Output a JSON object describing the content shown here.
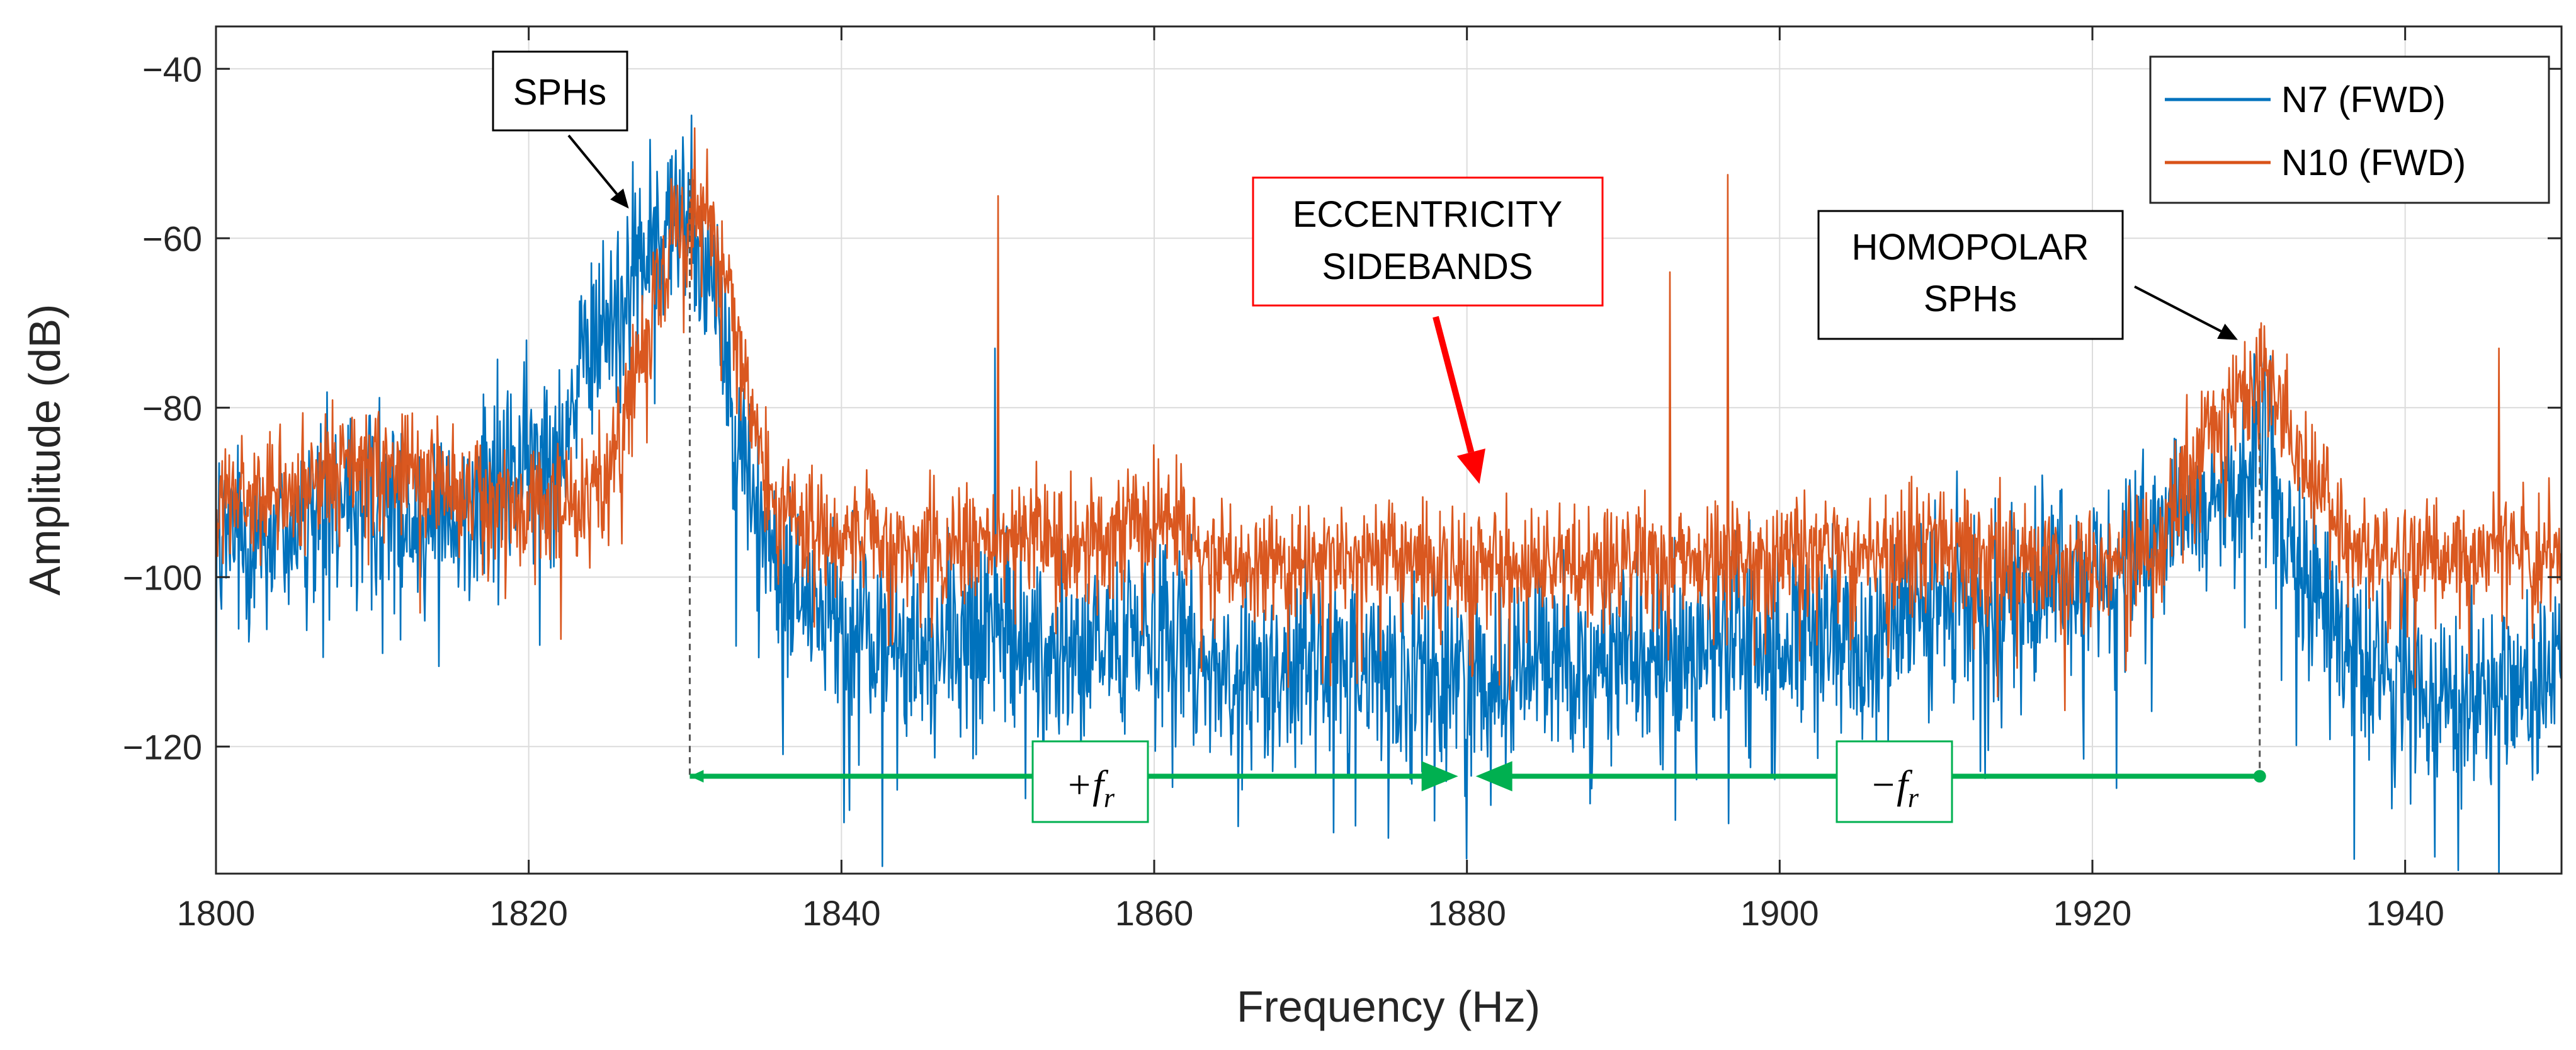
{
  "chart_data": {
    "type": "line",
    "title": "",
    "xlabel": "Frequency (Hz)",
    "ylabel": "Amplitude (dB)",
    "xlim": [
      1800,
      1950
    ],
    "ylim": [
      -135,
      -35
    ],
    "grid": true,
    "x_ticks": [
      1800,
      1820,
      1840,
      1860,
      1880,
      1900,
      1920,
      1940
    ],
    "y_ticks": [
      -40,
      -60,
      -80,
      -100,
      -120
    ],
    "x_tick_labels": [
      "1800",
      "1820",
      "1840",
      "1860",
      "1880",
      "1900",
      "1920",
      "1940"
    ],
    "y_tick_labels": [
      "−40",
      "−60",
      "−80",
      "−100",
      "−120"
    ],
    "legend_position": "top-right",
    "series": [
      {
        "name": "N7 (FWD)",
        "color": "#0072BD",
        "envelope_x": [
          1800,
          1805,
          1810,
          1815,
          1818,
          1822,
          1825,
          1828,
          1830,
          1832,
          1834,
          1836,
          1840,
          1845,
          1850,
          1855,
          1860,
          1865,
          1870,
          1875,
          1880,
          1885,
          1890,
          1895,
          1900,
          1905,
          1910,
          1915,
          1920,
          1924,
          1927,
          1929,
          1931,
          1933,
          1936,
          1940,
          1945,
          1950
        ],
        "envelope_y": [
          -96,
          -94,
          -90,
          -94,
          -89,
          -83,
          -70,
          -60,
          -56,
          -66,
          -88,
          -100,
          -106,
          -109,
          -106,
          -110,
          -104,
          -112,
          -110,
          -111,
          -112,
          -109,
          -110,
          -108,
          -108,
          -107,
          -104,
          -102,
          -99,
          -96,
          -92,
          -88,
          -86,
          -98,
          -108,
          -112,
          -113,
          -112
        ],
        "peaks": [
          {
            "x": 1830.4,
            "y": -45.5
          },
          {
            "x": 1824.5,
            "y": -63
          },
          {
            "x": 1849.8,
            "y": -73
          }
        ]
      },
      {
        "name": "N10 (FWD)",
        "color": "#D95319",
        "envelope_x": [
          1800,
          1805,
          1810,
          1815,
          1818,
          1822,
          1825,
          1828,
          1830,
          1832,
          1834,
          1836,
          1840,
          1845,
          1850,
          1855,
          1860,
          1865,
          1870,
          1875,
          1880,
          1885,
          1890,
          1895,
          1900,
          1905,
          1910,
          1915,
          1920,
          1924,
          1927,
          1929,
          1931,
          1933,
          1936,
          1940,
          1945,
          1950
        ],
        "envelope_y": [
          -92,
          -90,
          -86,
          -89,
          -91,
          -92,
          -88,
          -68,
          -57,
          -58,
          -80,
          -92,
          -96,
          -96,
          -95,
          -96,
          -93,
          -98,
          -98,
          -97,
          -99,
          -98,
          -98,
          -97,
          -98,
          -97,
          -96,
          -98,
          -99,
          -96,
          -84,
          -79,
          -75,
          -85,
          -96,
          -98,
          -97,
          -96
        ],
        "peaks": [
          {
            "x": 1830.6,
            "y": -47
          },
          {
            "x": 1850.0,
            "y": -55
          },
          {
            "x": 1893.0,
            "y": -64
          },
          {
            "x": 1896.7,
            "y": -52.5
          },
          {
            "x": 1930.8,
            "y": -70
          },
          {
            "x": 1946.0,
            "y": -73
          }
        ]
      }
    ],
    "reference_markers": [
      {
        "x": 1830.3,
        "y_from": -53,
        "y_to": -123.5
      },
      {
        "x": 1930.7,
        "y_from": -83,
        "y_to": -123.5
      }
    ],
    "arrows": [
      {
        "x_from": 1830.3,
        "x_to": 1880,
        "y": -123.5,
        "label_main": "+f",
        "label_sub": "r",
        "color": "#00B050"
      },
      {
        "x_from": 1930.7,
        "x_to": 1880,
        "y": -123.5,
        "label_main": "−f",
        "label_sub": "r",
        "color": "#00B050"
      }
    ],
    "annotations": [
      {
        "text": "SPHs",
        "target_x": 1826.4,
        "target_y": -56.5
      },
      {
        "lines": [
          "ECCENTRICITY",
          "SIDEBANDS"
        ],
        "target_x": 1880.8,
        "target_y": -89,
        "color": "#FF0000"
      },
      {
        "lines": [
          "HOMOPOLAR",
          "SPHs"
        ],
        "target_x": 1929.3,
        "target_y": -72
      }
    ]
  }
}
